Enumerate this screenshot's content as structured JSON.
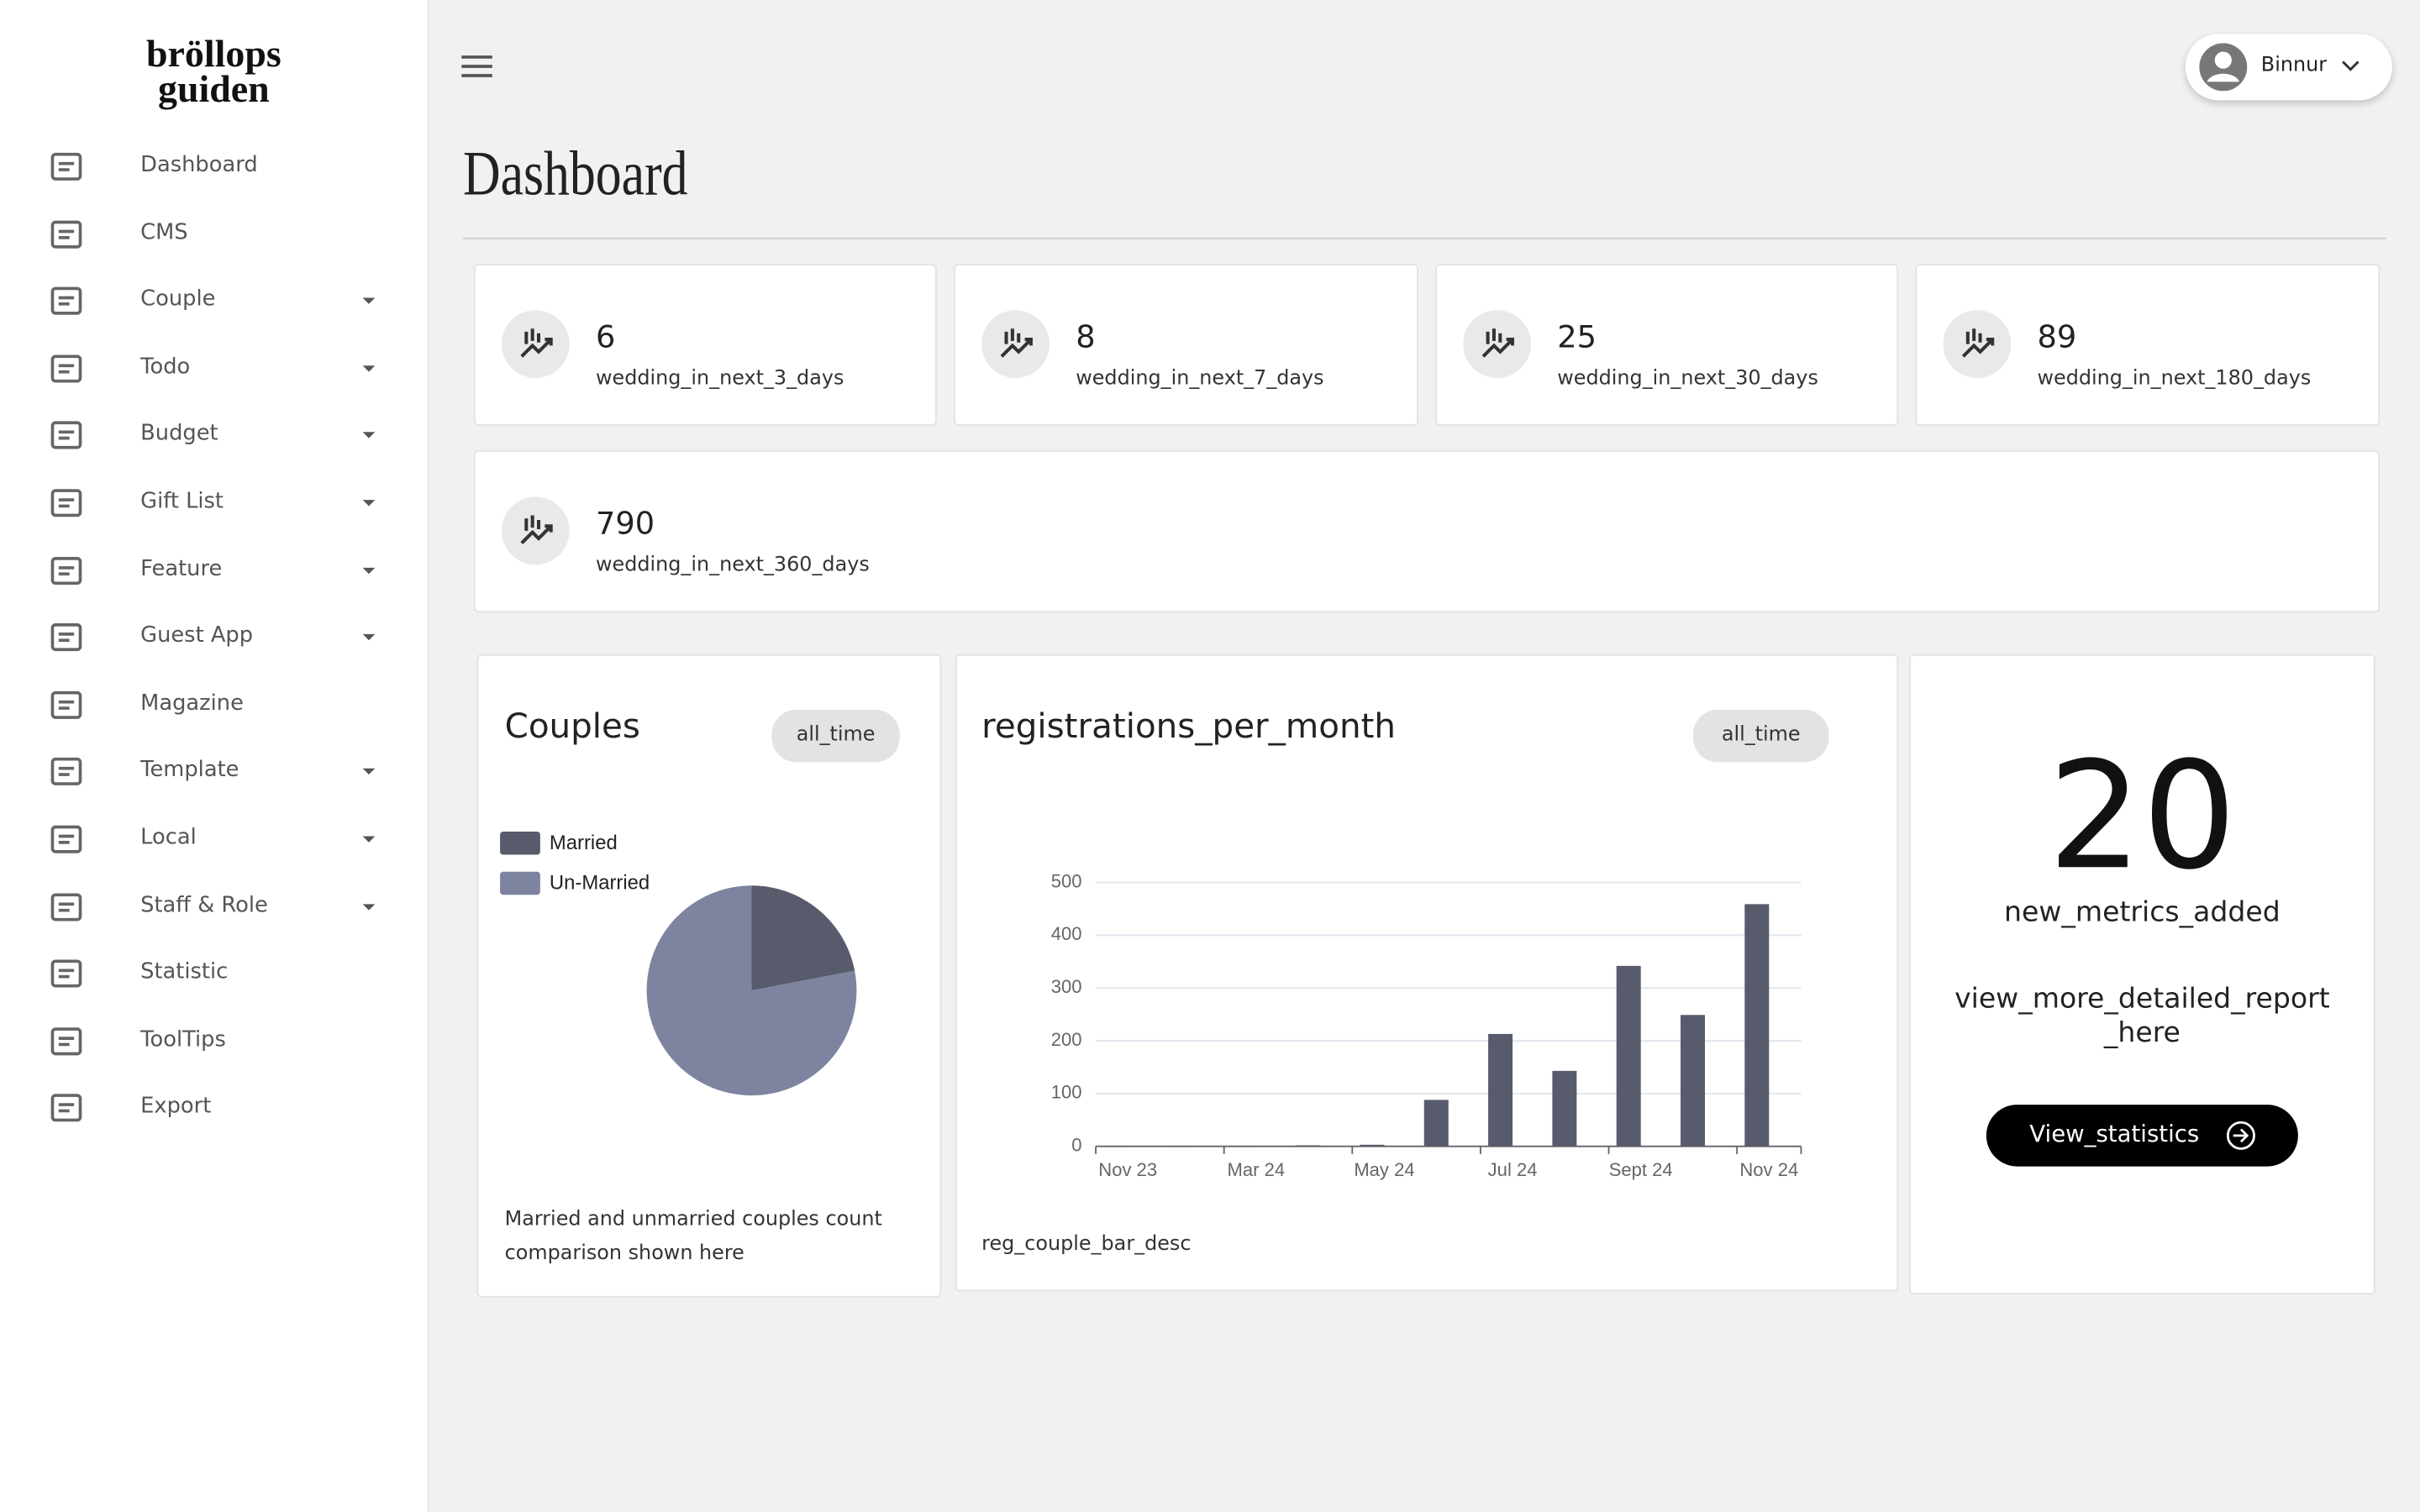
{
  "logo": {
    "line1": "bröllops",
    "line2": "guiden"
  },
  "sidebar": [
    {
      "label": "Dashboard",
      "has_submenu": false
    },
    {
      "label": "CMS",
      "has_submenu": false
    },
    {
      "label": "Couple",
      "has_submenu": true
    },
    {
      "label": "Todo",
      "has_submenu": true
    },
    {
      "label": "Budget",
      "has_submenu": true
    },
    {
      "label": "Gift List",
      "has_submenu": true
    },
    {
      "label": "Feature",
      "has_submenu": true
    },
    {
      "label": "Guest App",
      "has_submenu": true
    },
    {
      "label": "Magazine",
      "has_submenu": false
    },
    {
      "label": "Template",
      "has_submenu": true
    },
    {
      "label": "Local",
      "has_submenu": true
    },
    {
      "label": "Staff & Role",
      "has_submenu": true
    },
    {
      "label": "Statistic",
      "has_submenu": false
    },
    {
      "label": "ToolTips",
      "has_submenu": false
    },
    {
      "label": "Export",
      "has_submenu": false
    }
  ],
  "user": "Binnur",
  "page_title": "Dashboard",
  "stats": [
    {
      "value": 6,
      "label": "wedding_in_next_3_days"
    },
    {
      "value": 8,
      "label": "wedding_in_next_7_days"
    },
    {
      "value": 25,
      "label": "wedding_in_next_30_days"
    },
    {
      "value": 89,
      "label": "wedding_in_next_180_days"
    },
    {
      "value": 790,
      "label": "wedding_in_next_360_days"
    }
  ],
  "chart_data": [
    {
      "type": "pie",
      "title": "Couples",
      "filter": "all_time",
      "description": "Married and unmarried couples count comparison shown here",
      "categories": [
        "Married",
        "Un-Married"
      ],
      "values": [
        22,
        78
      ],
      "colors": [
        "#585b6b",
        "#7e849f"
      ],
      "legend": "top-left"
    },
    {
      "type": "bar",
      "title": "registrations_per_month",
      "filter": "all_time",
      "description": "reg_couple_bar_desc",
      "categories": [
        "Nov 23",
        null,
        "Mar 24",
        null,
        "May 24",
        null,
        "Jul 24",
        null,
        "Sept 24",
        null,
        "Nov 24"
      ],
      "values": [
        1,
        1,
        1,
        2,
        3,
        88,
        213,
        143,
        342,
        249,
        459
      ],
      "color": "#585b6b",
      "ylim": [
        0,
        500
      ],
      "yticks": [
        0,
        100,
        200,
        300,
        400,
        500
      ],
      "grid": true
    }
  ],
  "metric": {
    "value": 20,
    "label": "new_metrics_added",
    "link_text": "view_more_detailed_report_here",
    "button": "View_statistics"
  }
}
